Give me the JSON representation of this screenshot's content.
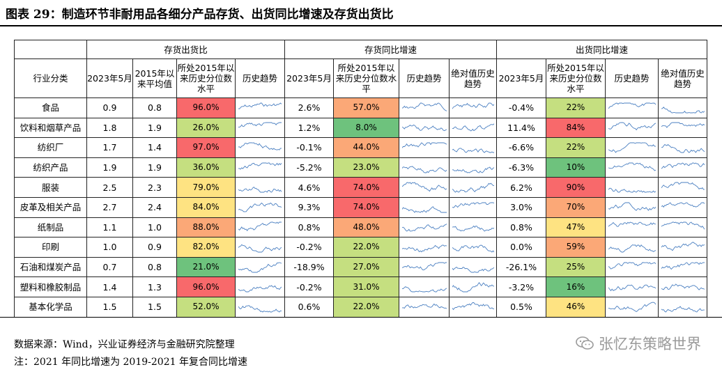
{
  "title": "图表 29：制造环节非耐用品各细分产品存货、出货同比增速及存货出货比",
  "groups": [
    "存货出货比",
    "存货同比增速",
    "出货同比增速"
  ],
  "cols": {
    "industry": "行业分类",
    "may2023": "2023年5月",
    "avg2015": "2015年以来平均值",
    "pct2015": "所处2015年以来历史分位数水平",
    "trend": "历史趋势",
    "abstrend": "绝对值历史趋势"
  },
  "colors": {
    "red": "#f8696b",
    "orange": "#fba877",
    "yellow": "#fee382",
    "lime": "#c5df80",
    "green": "#6ec27d"
  },
  "rows": [
    {
      "name": "食品",
      "r_v": "0.9",
      "r_avg": "0.8",
      "r_pct": "96.0%",
      "r_c": "red",
      "i_v": "2.6%",
      "i_pct": "57.0%",
      "i_c": "orange",
      "s_v": "-0.4%",
      "s_pct": "22%",
      "s_c": "lime"
    },
    {
      "name": "饮料和烟草产品",
      "r_v": "1.8",
      "r_avg": "1.9",
      "r_pct": "26.0%",
      "r_c": "lime",
      "i_v": "1.2%",
      "i_pct": "8.0%",
      "i_c": "green",
      "s_v": "11.4%",
      "s_pct": "84%",
      "s_c": "red"
    },
    {
      "name": "纺织厂",
      "r_v": "1.7",
      "r_avg": "1.4",
      "r_pct": "97.0%",
      "r_c": "red",
      "i_v": "-0.1%",
      "i_pct": "44.0%",
      "i_c": "orange",
      "s_v": "-6.6%",
      "s_pct": "22%",
      "s_c": "lime"
    },
    {
      "name": "纺织产品",
      "r_v": "1.9",
      "r_avg": "1.9",
      "r_pct": "36.0%",
      "r_c": "lime",
      "i_v": "-5.2%",
      "i_pct": "23.0%",
      "i_c": "lime",
      "s_v": "-6.3%",
      "s_pct": "10%",
      "s_c": "green"
    },
    {
      "name": "服装",
      "r_v": "2.5",
      "r_avg": "2.3",
      "r_pct": "79.0%",
      "r_c": "yellow",
      "i_v": "4.6%",
      "i_pct": "74.0%",
      "i_c": "red",
      "s_v": "6.2%",
      "s_pct": "90%",
      "s_c": "red"
    },
    {
      "name": "皮革及相关产品",
      "r_v": "2.7",
      "r_avg": "2.4",
      "r_pct": "84.0%",
      "r_c": "yellow",
      "i_v": "9.3%",
      "i_pct": "74.0%",
      "i_c": "red",
      "s_v": "3.0%",
      "s_pct": "70%",
      "s_c": "orange"
    },
    {
      "name": "纸制品",
      "r_v": "1.1",
      "r_avg": "1.0",
      "r_pct": "88.0%",
      "r_c": "orange",
      "i_v": "0.8%",
      "i_pct": "48.0%",
      "i_c": "orange",
      "s_v": "0.8%",
      "s_pct": "47%",
      "s_c": "yellow"
    },
    {
      "name": "印刷",
      "r_v": "1.0",
      "r_avg": "0.9",
      "r_pct": "82.0%",
      "r_c": "yellow",
      "i_v": "-0.2%",
      "i_pct": "22.0%",
      "i_c": "lime",
      "s_v": "0.0%",
      "s_pct": "59%",
      "s_c": "orange"
    },
    {
      "name": "石油和煤炭产品",
      "r_v": "0.7",
      "r_avg": "0.8",
      "r_pct": "21.0%",
      "r_c": "green",
      "i_v": "-18.9%",
      "i_pct": "27.0%",
      "i_c": "lime",
      "s_v": "-26.1%",
      "s_pct": "25%",
      "s_c": "lime"
    },
    {
      "name": "塑料和橡胶制品",
      "r_v": "1.4",
      "r_avg": "1.3",
      "r_pct": "96.0%",
      "r_c": "red",
      "i_v": "-0.2%",
      "i_pct": "31.0%",
      "i_c": "lime",
      "s_v": "-3.2%",
      "s_pct": "16%",
      "s_c": "green"
    },
    {
      "name": "基本化学品",
      "r_v": "1.5",
      "r_avg": "1.5",
      "r_pct": "52.0%",
      "r_c": "lime",
      "i_v": "0.6%",
      "i_pct": "22.0%",
      "i_c": "lime",
      "s_v": "0.5%",
      "s_pct": "46%",
      "s_c": "yellow"
    }
  ],
  "source": "数据来源：Wind，兴业证券经济与金融研究院整理",
  "footnote": "注：2021 年同比增速为 2019-2021 年复合同比增速",
  "watermark": "张忆东策略世界"
}
